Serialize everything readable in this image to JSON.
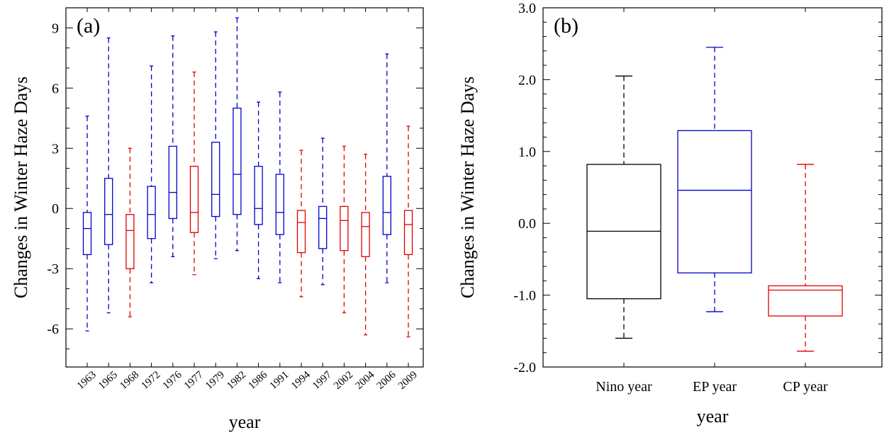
{
  "chart_data": [
    {
      "type": "box",
      "panel_label": "(a)",
      "xlabel": "year",
      "ylabel": "Changes in Winter Haze Days",
      "ylim": [
        -7.9,
        10
      ],
      "yticks": [
        -6,
        -3,
        0,
        3,
        6,
        9
      ],
      "ytick_labels": [
        "-6",
        "-3",
        "0",
        "3",
        "6",
        "9"
      ],
      "grid": false,
      "series_colors": {
        "EP": "#0000cc",
        "CP": "#e00000"
      },
      "boxes": [
        {
          "label": "1963",
          "group": "EP",
          "min": -6.1,
          "q1": -2.3,
          "median": -1.0,
          "q3": -0.2,
          "max": 4.6
        },
        {
          "label": "1965",
          "group": "EP",
          "min": -5.2,
          "q1": -1.8,
          "median": -0.3,
          "q3": 1.5,
          "max": 8.5
        },
        {
          "label": "1968",
          "group": "CP",
          "min": -5.4,
          "q1": -3.0,
          "median": -1.1,
          "q3": -0.3,
          "max": 3.0
        },
        {
          "label": "1972",
          "group": "EP",
          "min": -3.7,
          "q1": -1.5,
          "median": -0.3,
          "q3": 1.1,
          "max": 7.1
        },
        {
          "label": "1976",
          "group": "EP",
          "min": -2.4,
          "q1": -0.5,
          "median": 0.8,
          "q3": 3.1,
          "max": 8.6
        },
        {
          "label": "1977",
          "group": "CP",
          "min": -3.3,
          "q1": -1.2,
          "median": -0.2,
          "q3": 2.1,
          "max": 6.8
        },
        {
          "label": "1979",
          "group": "EP",
          "min": -2.5,
          "q1": -0.4,
          "median": 0.7,
          "q3": 3.3,
          "max": 8.8
        },
        {
          "label": "1982",
          "group": "EP",
          "min": -2.1,
          "q1": -0.3,
          "median": 1.7,
          "q3": 5.0,
          "max": 9.5
        },
        {
          "label": "1986",
          "group": "EP",
          "min": -3.5,
          "q1": -0.8,
          "median": 0.0,
          "q3": 2.1,
          "max": 5.3
        },
        {
          "label": "1991",
          "group": "EP",
          "min": -3.7,
          "q1": -1.3,
          "median": -0.2,
          "q3": 1.7,
          "max": 5.8
        },
        {
          "label": "1994",
          "group": "CP",
          "min": -4.4,
          "q1": -2.2,
          "median": -0.7,
          "q3": -0.1,
          "max": 2.9
        },
        {
          "label": "1997",
          "group": "EP",
          "min": -3.8,
          "q1": -2.0,
          "median": -0.5,
          "q3": 0.1,
          "max": 3.5
        },
        {
          "label": "2002",
          "group": "CP",
          "min": -5.2,
          "q1": -2.1,
          "median": -0.6,
          "q3": 0.1,
          "max": 3.1
        },
        {
          "label": "2004",
          "group": "CP",
          "min": -6.3,
          "q1": -2.4,
          "median": -0.9,
          "q3": -0.2,
          "max": 2.7
        },
        {
          "label": "2006",
          "group": "EP",
          "min": -3.7,
          "q1": -1.3,
          "median": -0.2,
          "q3": 1.6,
          "max": 7.7
        },
        {
          "label": "2009",
          "group": "CP",
          "min": -6.4,
          "q1": -2.3,
          "median": -0.8,
          "q3": -0.1,
          "max": 4.1
        }
      ]
    },
    {
      "type": "box",
      "panel_label": "(b)",
      "xlabel": "year",
      "ylabel": "Changes in Winter Haze Days",
      "ylim": [
        -2.0,
        3.0
      ],
      "yticks": [
        -2.0,
        -1.0,
        0.0,
        1.0,
        2.0,
        3.0
      ],
      "ytick_labels": [
        "-2.0",
        "-1.0",
        "0.0",
        "1.0",
        "2.0",
        "3.0"
      ],
      "grid": false,
      "boxes": [
        {
          "label": "Nino year",
          "color": "#000000",
          "min": -1.6,
          "q1": -1.05,
          "median": -0.11,
          "q3": 0.82,
          "max": 2.05
        },
        {
          "label": "EP year",
          "color": "#0000cc",
          "min": -1.23,
          "q1": -0.69,
          "median": 0.46,
          "q3": 1.29,
          "max": 2.45
        },
        {
          "label": "CP year",
          "color": "#e00000",
          "min": -1.78,
          "q1": -1.29,
          "median": -0.93,
          "q3": -0.87,
          "max": 0.82
        }
      ]
    }
  ]
}
